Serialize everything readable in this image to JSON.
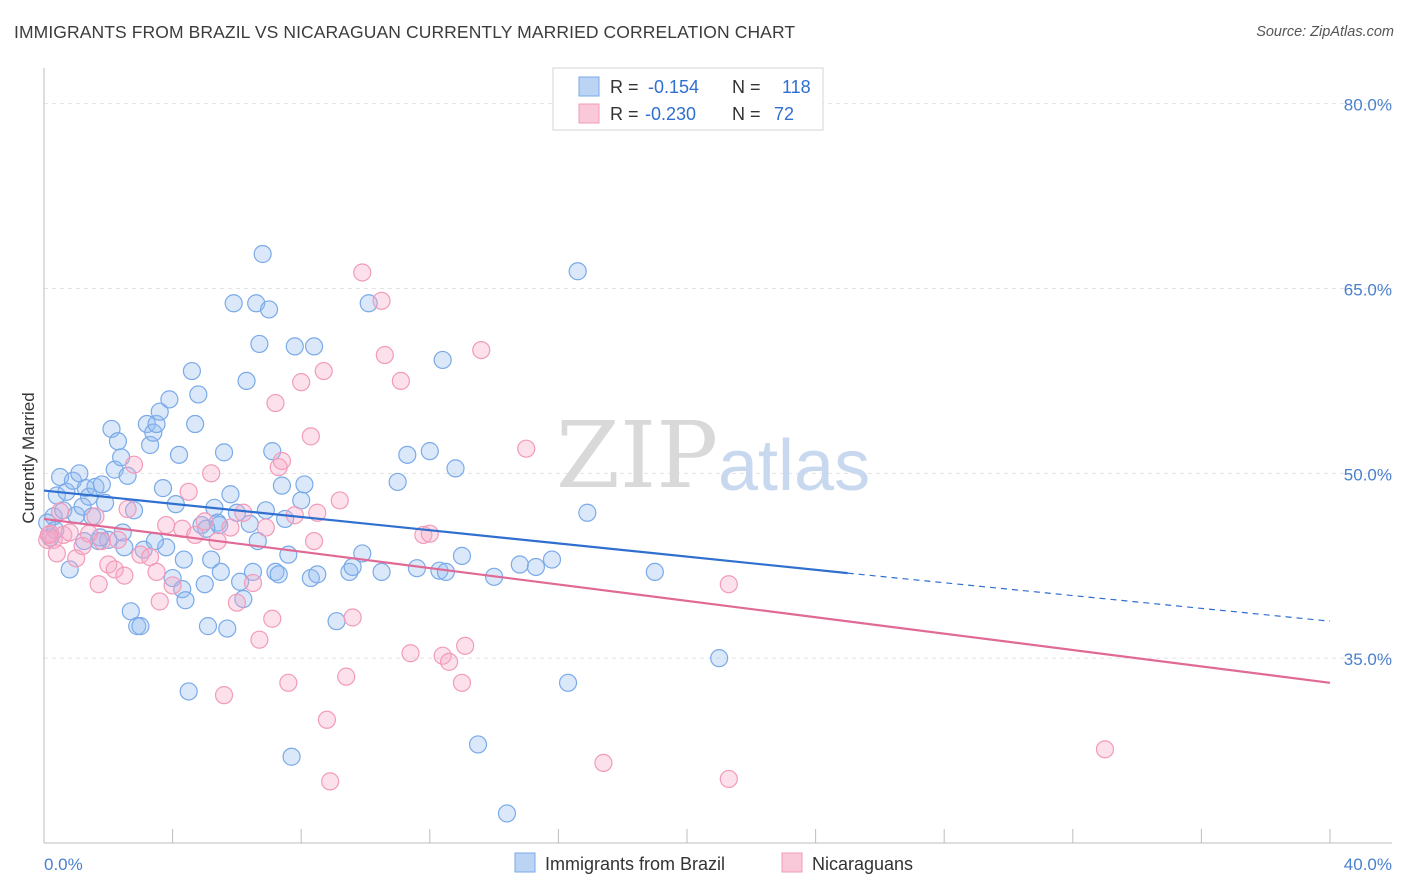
{
  "title": "IMMIGRANTS FROM BRAZIL VS NICARAGUAN CURRENTLY MARRIED CORRELATION CHART",
  "source": "Source: ZipAtlas.com",
  "watermark": {
    "zip": "ZIP",
    "atlas": "atlas"
  },
  "legend_top": {
    "rows": [
      {
        "r_label": "R =",
        "r_value": "-0.154",
        "n_label": "N =",
        "n_value": "118"
      },
      {
        "r_label": "R =",
        "r_value": "-0.230",
        "n_label": "N =",
        "n_value": "72"
      }
    ]
  },
  "chart_data": {
    "type": "scatter",
    "ylabel": "Currently Married",
    "xlim": [
      0,
      40
    ],
    "ylim": [
      20,
      82
    ],
    "yticks": [
      {
        "value": 80,
        "label": "80.0%"
      },
      {
        "value": 65,
        "label": "65.0%"
      },
      {
        "value": 50,
        "label": "50.0%"
      },
      {
        "value": 35,
        "label": "35.0%"
      }
    ],
    "xtick_labels": {
      "left": "0.0%",
      "right": "40.0%"
    },
    "grid": true,
    "legend_position": "bottom",
    "series": [
      {
        "name": "Immigrants from Brazil",
        "color": "#7aaae8",
        "line_color": "#2f6fcf",
        "r": -0.154,
        "n": 118,
        "trend": {
          "x0": 0,
          "y0": 48.6,
          "x1": 25,
          "y1": 41.9,
          "x_dash_end": 40,
          "y_dash_end": 38.0
        },
        "points": [
          [
            0.3,
            46.5
          ],
          [
            0.4,
            48.2
          ],
          [
            0.5,
            49.7
          ],
          [
            0.6,
            47.0
          ],
          [
            0.7,
            48.5
          ],
          [
            0.8,
            42.2
          ],
          [
            0.9,
            49.4
          ],
          [
            1.0,
            46.6
          ],
          [
            1.1,
            50.0
          ],
          [
            1.2,
            47.3
          ],
          [
            1.3,
            48.8
          ],
          [
            1.4,
            48.1
          ],
          [
            1.5,
            46.5
          ],
          [
            1.6,
            48.9
          ],
          [
            1.7,
            44.5
          ],
          [
            1.8,
            49.1
          ],
          [
            1.9,
            47.6
          ],
          [
            2.0,
            44.6
          ],
          [
            2.1,
            53.6
          ],
          [
            2.2,
            50.3
          ],
          [
            2.3,
            52.6
          ],
          [
            2.4,
            51.3
          ],
          [
            2.5,
            44.0
          ],
          [
            2.6,
            49.8
          ],
          [
            2.7,
            38.8
          ],
          [
            2.8,
            47.0
          ],
          [
            2.9,
            37.6
          ],
          [
            3.0,
            37.6
          ],
          [
            3.1,
            43.8
          ],
          [
            3.2,
            54.0
          ],
          [
            3.3,
            52.3
          ],
          [
            3.4,
            53.3
          ],
          [
            3.5,
            54.0
          ],
          [
            3.6,
            55.0
          ],
          [
            3.7,
            48.8
          ],
          [
            3.8,
            44.0
          ],
          [
            3.9,
            56.0
          ],
          [
            4.0,
            41.5
          ],
          [
            4.1,
            47.5
          ],
          [
            4.2,
            51.5
          ],
          [
            4.3,
            40.6
          ],
          [
            4.4,
            39.7
          ],
          [
            4.5,
            32.3
          ],
          [
            4.6,
            58.3
          ],
          [
            4.7,
            54.0
          ],
          [
            4.8,
            56.4
          ],
          [
            4.9,
            45.8
          ],
          [
            5.0,
            41.0
          ],
          [
            5.1,
            37.6
          ],
          [
            5.2,
            43.0
          ],
          [
            5.3,
            47.2
          ],
          [
            5.4,
            46.0
          ],
          [
            5.5,
            42.0
          ],
          [
            5.6,
            51.7
          ],
          [
            5.7,
            37.4
          ],
          [
            5.8,
            48.3
          ],
          [
            5.9,
            63.8
          ],
          [
            6.0,
            46.8
          ],
          [
            6.1,
            41.2
          ],
          [
            6.2,
            39.8
          ],
          [
            6.3,
            57.5
          ],
          [
            6.4,
            45.9
          ],
          [
            6.5,
            42.0
          ],
          [
            6.6,
            63.8
          ],
          [
            6.7,
            60.5
          ],
          [
            6.8,
            67.8
          ],
          [
            6.9,
            47.0
          ],
          [
            7.0,
            63.3
          ],
          [
            7.1,
            51.8
          ],
          [
            7.2,
            42.0
          ],
          [
            7.3,
            41.8
          ],
          [
            7.4,
            49.0
          ],
          [
            7.5,
            46.3
          ],
          [
            7.6,
            43.4
          ],
          [
            7.7,
            27.0
          ],
          [
            7.8,
            60.3
          ],
          [
            8.0,
            47.8
          ],
          [
            8.1,
            49.1
          ],
          [
            8.3,
            41.5
          ],
          [
            8.4,
            60.3
          ],
          [
            8.5,
            41.8
          ],
          [
            9.1,
            38.0
          ],
          [
            9.5,
            42.0
          ],
          [
            9.6,
            42.4
          ],
          [
            9.9,
            43.5
          ],
          [
            10.1,
            63.8
          ],
          [
            10.5,
            42.0
          ],
          [
            11.0,
            49.3
          ],
          [
            11.3,
            51.5
          ],
          [
            11.6,
            42.3
          ],
          [
            12.0,
            51.8
          ],
          [
            12.4,
            59.2
          ],
          [
            12.3,
            42.1
          ],
          [
            12.5,
            42.0
          ],
          [
            12.8,
            50.4
          ],
          [
            13.0,
            43.3
          ],
          [
            13.5,
            28.0
          ],
          [
            14.0,
            41.6
          ],
          [
            14.4,
            22.4
          ],
          [
            14.8,
            42.6
          ],
          [
            15.3,
            42.4
          ],
          [
            15.8,
            43.0
          ],
          [
            16.3,
            33.0
          ],
          [
            16.6,
            66.4
          ],
          [
            16.9,
            46.8
          ],
          [
            19.0,
            42.0
          ],
          [
            21.0,
            35.0
          ],
          [
            0.1,
            46.0
          ],
          [
            0.2,
            44.8
          ],
          [
            0.35,
            45.4
          ],
          [
            1.25,
            44.5
          ],
          [
            1.75,
            44.8
          ],
          [
            4.35,
            43.0
          ],
          [
            6.65,
            44.5
          ],
          [
            5.45,
            45.8
          ],
          [
            5.05,
            45.5
          ],
          [
            3.45,
            44.5
          ],
          [
            2.45,
            45.2
          ]
        ]
      },
      {
        "name": "Nicaraguans",
        "color": "#f29bb8",
        "line_color": "#e06a95",
        "r": -0.23,
        "n": 72,
        "trend": {
          "x0": 0,
          "y0": 46.3,
          "x1": 40,
          "y1": 33.0
        },
        "points": [
          [
            0.1,
            44.6
          ],
          [
            0.2,
            45.1
          ],
          [
            0.3,
            44.6
          ],
          [
            0.4,
            43.5
          ],
          [
            0.5,
            46.9
          ],
          [
            0.6,
            45.0
          ],
          [
            0.8,
            45.2
          ],
          [
            1.0,
            43.1
          ],
          [
            1.2,
            44.1
          ],
          [
            1.4,
            45.1
          ],
          [
            1.6,
            46.5
          ],
          [
            1.7,
            41.0
          ],
          [
            1.8,
            44.5
          ],
          [
            2.0,
            42.6
          ],
          [
            2.2,
            42.2
          ],
          [
            2.3,
            44.6
          ],
          [
            2.5,
            41.7
          ],
          [
            2.6,
            47.1
          ],
          [
            2.8,
            50.7
          ],
          [
            3.0,
            43.4
          ],
          [
            3.3,
            43.2
          ],
          [
            3.5,
            42.0
          ],
          [
            3.6,
            39.6
          ],
          [
            3.8,
            45.8
          ],
          [
            4.0,
            40.9
          ],
          [
            4.3,
            45.5
          ],
          [
            4.5,
            48.5
          ],
          [
            4.7,
            45.0
          ],
          [
            5.0,
            46.1
          ],
          [
            5.2,
            50.0
          ],
          [
            5.4,
            44.5
          ],
          [
            5.6,
            32.0
          ],
          [
            5.8,
            45.6
          ],
          [
            6.0,
            39.5
          ],
          [
            6.2,
            46.8
          ],
          [
            6.5,
            41.1
          ],
          [
            6.7,
            36.5
          ],
          [
            6.9,
            45.6
          ],
          [
            7.1,
            38.2
          ],
          [
            7.2,
            55.7
          ],
          [
            7.3,
            50.5
          ],
          [
            7.4,
            51.0
          ],
          [
            7.6,
            33.0
          ],
          [
            7.8,
            46.6
          ],
          [
            8.0,
            57.4
          ],
          [
            8.3,
            53.0
          ],
          [
            8.4,
            44.5
          ],
          [
            8.5,
            46.8
          ],
          [
            8.7,
            58.3
          ],
          [
            8.8,
            30.0
          ],
          [
            8.9,
            25.0
          ],
          [
            9.2,
            47.8
          ],
          [
            9.4,
            33.5
          ],
          [
            9.6,
            38.3
          ],
          [
            9.9,
            66.3
          ],
          [
            10.5,
            64.0
          ],
          [
            10.6,
            59.6
          ],
          [
            11.1,
            57.5
          ],
          [
            11.4,
            35.4
          ],
          [
            11.8,
            45.0
          ],
          [
            12.0,
            45.1
          ],
          [
            12.4,
            35.2
          ],
          [
            12.6,
            34.7
          ],
          [
            13.0,
            33.0
          ],
          [
            13.1,
            36.0
          ],
          [
            13.6,
            60.0
          ],
          [
            15.0,
            52.0
          ],
          [
            17.4,
            26.5
          ],
          [
            21.3,
            41.0
          ],
          [
            21.3,
            25.2
          ],
          [
            33.0,
            27.6
          ],
          [
            0.15,
            45.0
          ]
        ]
      }
    ]
  }
}
